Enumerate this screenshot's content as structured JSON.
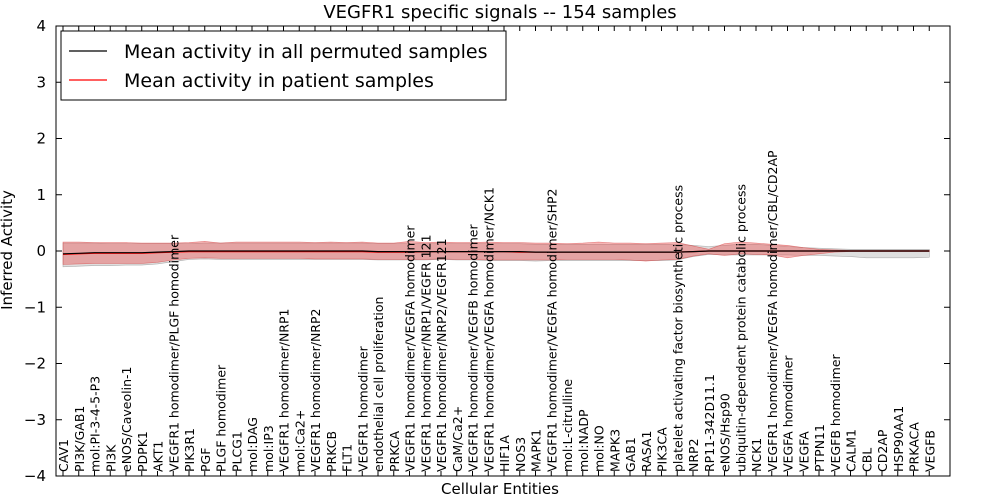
{
  "chart_data": {
    "type": "line",
    "title": "VEGFR1 specific signals -- 154 samples",
    "xlabel": "Cellular Entities",
    "ylabel": "Inferred Activity",
    "ylim": [
      -4,
      4
    ],
    "yticks": [
      4,
      3,
      2,
      1,
      0,
      -1,
      -2,
      -3,
      -4
    ],
    "yticklabels": [
      "4",
      "3",
      "2",
      "1",
      "0",
      "−1",
      "−2",
      "−3",
      "−4"
    ],
    "grid": false,
    "legend_position": "top-left",
    "categories": [
      "CAV1",
      "PI3K/GAB1",
      "mol:PI-3-4-5-P3",
      "PI3K",
      "eNOS/Caveolin-1",
      "PDPK1",
      "AKT1",
      "VEGFR1 homodimer/PLGF homodimer",
      "PIK3R1",
      "PGF",
      "PLGF homodimer",
      "PLCG1",
      "mol:DAG",
      "mol:IP3",
      "VEGFR1 homodimer/NRP1",
      "mol:Ca2+",
      "VEGFR1 homodimer/NRP2",
      "PRKCB",
      "FLT1",
      "VEGFR1 homodimer",
      "endothelial cell proliferation",
      "PRKCA",
      "VEGFR1 homodimer/VEGFA homodimer",
      "VEGFR1 homodimer/NRP1/VEGFR 121",
      "VEGFR1 homodimer/NRP2/VEGFR121",
      "CaM/Ca2+",
      "VEGFR1 homodimer/VEGFB homodimer",
      "VEGFR1 homodimer/VEGFA homodimer/NCK1",
      "HIF1A",
      "NOS3",
      "MAPK1",
      "VEGFR1 homodimer/VEGFA homodimer/SHP2",
      "mol:L-citrulline",
      "mol:NADP",
      "mol:NO",
      "MAPK3",
      "GAB1",
      "RASA1",
      "PIK3CA",
      "platelet activating factor biosynthetic process",
      "NRP2",
      "RP11-342D11.1",
      "eNOS/Hsp90",
      "ubiquitin-dependent protein catabolic process",
      "NCK1",
      "VEGFR1 homodimer/VEGFA homodimer/CBL/CD2AP",
      "VEGFA homodimer",
      "VEGFA",
      "PTPN11",
      "VEGFB homodimer",
      "CALM1",
      "CBL",
      "CD2AP",
      "HSP90AA1",
      "PRKACA",
      "VEGFB"
    ],
    "series": [
      {
        "name": "Mean activity in all permuted samples",
        "color": "#000000",
        "values": [
          -0.05,
          -0.04,
          -0.03,
          -0.03,
          -0.03,
          -0.03,
          -0.02,
          -0.01,
          0.0,
          0.0,
          0.0,
          0.0,
          0.0,
          0.0,
          0.0,
          0.0,
          0.0,
          0.0,
          0.0,
          0.0,
          -0.01,
          -0.01,
          -0.01,
          -0.01,
          -0.01,
          -0.01,
          -0.01,
          -0.01,
          -0.01,
          -0.01,
          -0.02,
          -0.02,
          -0.02,
          -0.02,
          -0.02,
          -0.02,
          -0.02,
          -0.02,
          -0.02,
          -0.02,
          -0.01,
          0.0,
          0.0,
          0.0,
          0.0,
          0.0,
          0.0,
          0.0,
          0.0,
          0.0,
          0.0,
          0.0,
          0.0,
          0.0,
          0.0,
          0.0
        ],
        "band_low": [
          -0.28,
          -0.27,
          -0.26,
          -0.26,
          -0.25,
          -0.25,
          -0.23,
          -0.19,
          -0.15,
          -0.14,
          -0.15,
          -0.15,
          -0.15,
          -0.15,
          -0.15,
          -0.15,
          -0.15,
          -0.15,
          -0.15,
          -0.15,
          -0.16,
          -0.16,
          -0.16,
          -0.16,
          -0.15,
          -0.16,
          -0.16,
          -0.17,
          -0.17,
          -0.17,
          -0.18,
          -0.17,
          -0.17,
          -0.17,
          -0.17,
          -0.17,
          -0.17,
          -0.17,
          -0.17,
          -0.16,
          -0.1,
          -0.06,
          -0.07,
          -0.07,
          -0.07,
          -0.07,
          -0.07,
          -0.08,
          -0.08,
          -0.09,
          -0.1,
          -0.12,
          -0.12,
          -0.12,
          -0.12,
          -0.11
        ],
        "band_high": [
          0.14,
          0.14,
          0.14,
          0.13,
          0.13,
          0.13,
          0.13,
          0.13,
          0.13,
          0.14,
          0.14,
          0.14,
          0.14,
          0.14,
          0.14,
          0.14,
          0.14,
          0.14,
          0.14,
          0.14,
          0.13,
          0.13,
          0.13,
          0.13,
          0.13,
          0.13,
          0.13,
          0.13,
          0.13,
          0.13,
          0.12,
          0.12,
          0.12,
          0.12,
          0.12,
          0.12,
          0.12,
          0.12,
          0.12,
          0.12,
          0.1,
          0.08,
          0.1,
          0.12,
          0.12,
          0.1,
          0.08,
          0.06,
          0.05,
          0.04,
          0.03,
          0.03,
          0.03,
          0.03,
          0.03,
          0.03
        ]
      },
      {
        "name": "Mean activity in patient samples",
        "color": "#ff0000",
        "values": [
          -0.06,
          -0.05,
          -0.04,
          -0.04,
          -0.04,
          -0.04,
          -0.03,
          -0.02,
          -0.01,
          -0.01,
          -0.01,
          -0.01,
          -0.01,
          -0.01,
          -0.01,
          -0.01,
          -0.01,
          -0.01,
          -0.01,
          -0.01,
          -0.02,
          -0.02,
          -0.02,
          -0.01,
          -0.01,
          -0.01,
          -0.01,
          -0.01,
          -0.01,
          -0.02,
          -0.02,
          -0.02,
          -0.02,
          -0.02,
          -0.02,
          -0.02,
          -0.02,
          -0.02,
          -0.02,
          -0.02,
          -0.01,
          0.0,
          0.0,
          0.0,
          0.0,
          0.0,
          0.0,
          0.0,
          0.0,
          0.0,
          0.0,
          0.0,
          0.0,
          0.0,
          0.0,
          0.0
        ],
        "band_low": [
          -0.24,
          -0.23,
          -0.22,
          -0.22,
          -0.22,
          -0.22,
          -0.2,
          -0.16,
          -0.13,
          -0.12,
          -0.13,
          -0.13,
          -0.13,
          -0.13,
          -0.13,
          -0.13,
          -0.14,
          -0.14,
          -0.14,
          -0.14,
          -0.15,
          -0.15,
          -0.15,
          -0.15,
          -0.14,
          -0.15,
          -0.15,
          -0.16,
          -0.16,
          -0.16,
          -0.16,
          -0.16,
          -0.15,
          -0.15,
          -0.15,
          -0.15,
          -0.16,
          -0.18,
          -0.16,
          -0.15,
          -0.09,
          -0.05,
          -0.08,
          -0.05,
          -0.06,
          -0.07,
          -0.12,
          -0.08,
          -0.05,
          -0.02,
          -0.01,
          -0.01,
          -0.01,
          -0.01,
          -0.01,
          -0.01
        ],
        "band_high": [
          0.16,
          0.16,
          0.15,
          0.15,
          0.15,
          0.14,
          0.14,
          0.14,
          0.15,
          0.17,
          0.14,
          0.16,
          0.16,
          0.16,
          0.16,
          0.16,
          0.15,
          0.16,
          0.15,
          0.16,
          0.14,
          0.14,
          0.17,
          0.15,
          0.16,
          0.15,
          0.15,
          0.16,
          0.15,
          0.15,
          0.14,
          0.14,
          0.13,
          0.14,
          0.16,
          0.14,
          0.14,
          0.13,
          0.14,
          0.15,
          0.09,
          0.03,
          0.13,
          0.16,
          0.14,
          0.12,
          0.1,
          0.06,
          0.03,
          0.02,
          0.01,
          0.01,
          0.01,
          0.01,
          0.01,
          0.01
        ]
      }
    ]
  }
}
